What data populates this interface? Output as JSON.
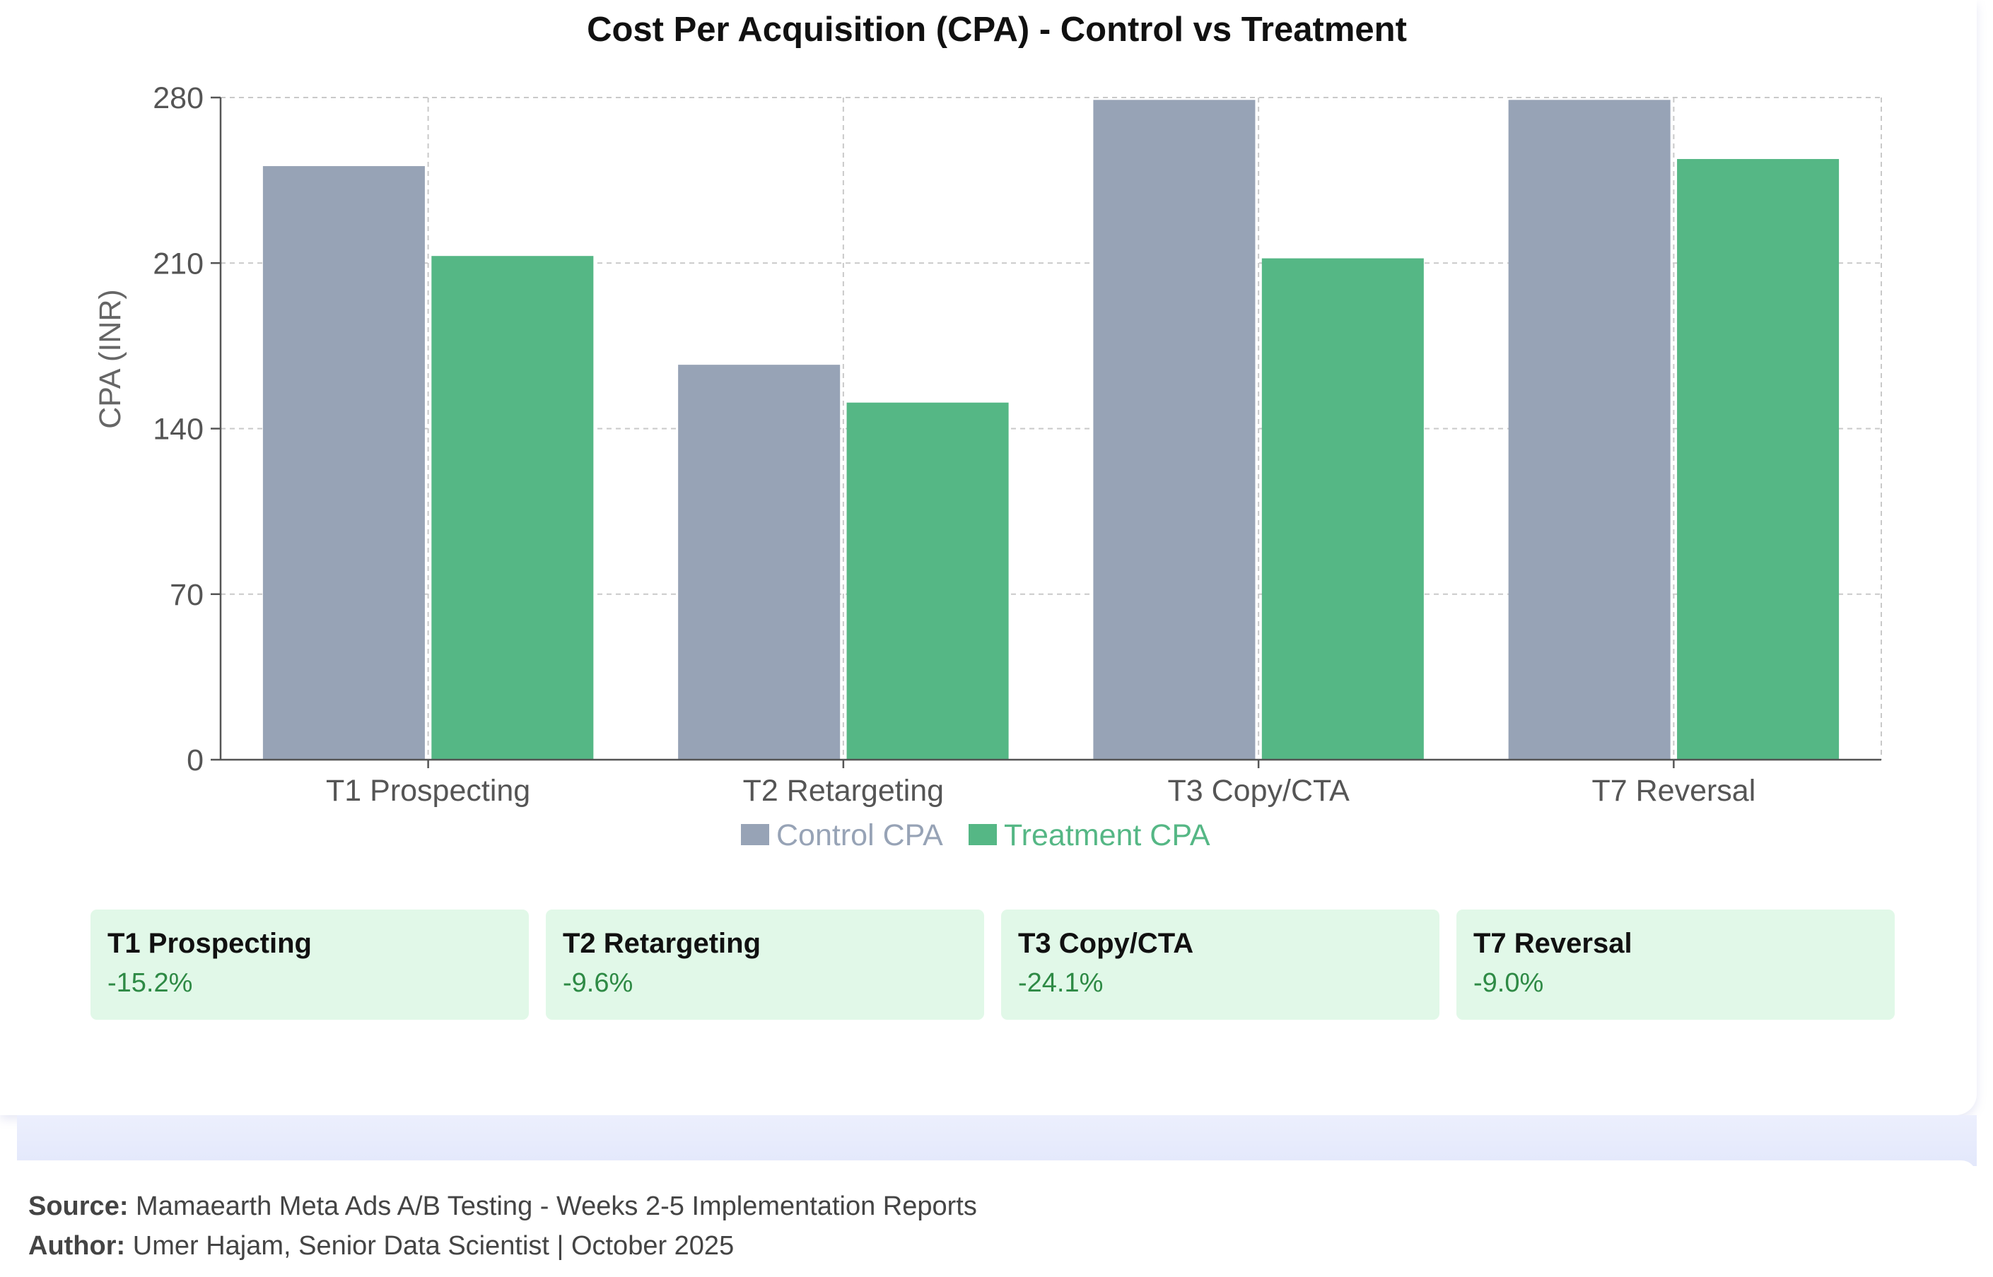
{
  "chart_data": {
    "type": "bar",
    "title": "Cost Per Acquisition (CPA) - Control vs Treatment",
    "categories": [
      "T1 Prospecting",
      "T2 Retargeting",
      "T3 Copy/CTA",
      "T7 Reversal"
    ],
    "series": [
      {
        "name": "Control CPA",
        "color": "#97a3b6",
        "values": [
          251,
          167,
          279,
          279
        ]
      },
      {
        "name": "Treatment CPA",
        "color": "#55b785",
        "values": [
          213,
          151,
          212,
          254
        ]
      }
    ],
    "xlabel": "",
    "ylabel": "CPA (INR)",
    "ylim": [
      0,
      280
    ],
    "yticks": [
      0,
      70,
      140,
      210,
      280
    ],
    "grid": true,
    "legend": "bottom-center"
  },
  "summary": {
    "boxes": [
      {
        "label": "T1 Prospecting",
        "value": "-15.2%"
      },
      {
        "label": "T2 Retargeting",
        "value": "-9.6%"
      },
      {
        "label": "T3 Copy/CTA",
        "value": "-24.1%"
      },
      {
        "label": "T7 Reversal",
        "value": "-9.0%"
      }
    ]
  },
  "footer": {
    "source_label": "Source:",
    "source_text": "Mamaearth Meta Ads A/B Testing - Weeks 2-5 Implementation Reports",
    "author_label": "Author:",
    "author_text": "Umer Hajam, Senior Data Scientist | October 2025"
  }
}
